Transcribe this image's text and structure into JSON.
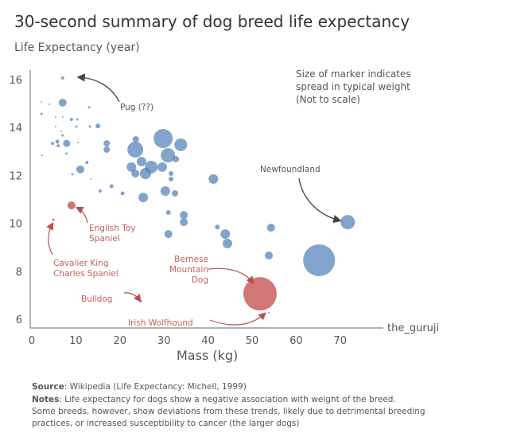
{
  "chart_data": {
    "type": "scatter",
    "title": "30-second summary of dog breed life expectancy",
    "ylabel": "Life Expectancy (year)",
    "xlabel": "Mass (kg)",
    "xlim": [
      0,
      80
    ],
    "ylim": [
      5.6,
      16.3
    ],
    "xticks": [
      "0",
      "10",
      "20",
      "30",
      "40",
      "50",
      "60",
      "70"
    ],
    "xtick_values": [
      0,
      10,
      20,
      30,
      40,
      50,
      60,
      70
    ],
    "yticks": [
      "6",
      "8",
      "10",
      "12",
      "14",
      "16"
    ],
    "ytick_values": [
      6,
      8,
      10,
      12,
      14,
      16
    ],
    "grid": false,
    "size_note": [
      "Size of marker indicates",
      "spread in typical weight",
      "(Not to scale)"
    ],
    "watermark": "the_guruji",
    "colors": {
      "normal": "#4f7db3",
      "highlight": "#c9605f",
      "arrow": "#444444"
    },
    "series": [
      {
        "name": "breeds",
        "color": "#4f7db3",
        "points_xy_size": [
          [
            7.0,
            16.07,
            2
          ],
          [
            7.0,
            15.04,
            5
          ],
          [
            2.2,
            15.07,
            1
          ],
          [
            4.0,
            14.97,
            1
          ],
          [
            2.2,
            14.57,
            1.5
          ],
          [
            5.4,
            14.44,
            1
          ],
          [
            7.0,
            14.44,
            1
          ],
          [
            9.0,
            14.34,
            2
          ],
          [
            10.3,
            14.34,
            1.5
          ],
          [
            10.1,
            14.04,
            1.5
          ],
          [
            13.2,
            14.04,
            1.5
          ],
          [
            13.0,
            14.84,
            1.5
          ],
          [
            15.0,
            14.07,
            3
          ],
          [
            5.4,
            14.04,
            1
          ],
          [
            6.7,
            13.84,
            1
          ],
          [
            7.0,
            13.67,
            1.5
          ],
          [
            4.7,
            13.34,
            2
          ],
          [
            5.8,
            13.41,
            2.5
          ],
          [
            6.0,
            13.24,
            2
          ],
          [
            7.9,
            13.34,
            4.5
          ],
          [
            10.5,
            13.38,
            1
          ],
          [
            7.9,
            12.91,
            1.5
          ],
          [
            17.0,
            13.34,
            4
          ],
          [
            17.0,
            13.08,
            4
          ],
          [
            2.3,
            12.84,
            1
          ],
          [
            12.5,
            12.54,
            2
          ],
          [
            11.0,
            12.25,
            5
          ],
          [
            9.2,
            12.05,
            1.5
          ],
          [
            13.5,
            11.85,
            1
          ],
          [
            29.8,
            13.54,
            12
          ],
          [
            33.8,
            13.28,
            8
          ],
          [
            23.5,
            13.08,
            10
          ],
          [
            23.6,
            13.51,
            4
          ],
          [
            30.9,
            12.84,
            9
          ],
          [
            24.9,
            12.58,
            6
          ],
          [
            22.6,
            12.35,
            6
          ],
          [
            27.1,
            12.35,
            8
          ],
          [
            29.6,
            12.35,
            6
          ],
          [
            25.8,
            12.08,
            7
          ],
          [
            23.5,
            12.08,
            5
          ],
          [
            32.7,
            12.68,
            4
          ],
          [
            31.6,
            12.08,
            3
          ],
          [
            31.6,
            11.85,
            3
          ],
          [
            30.3,
            11.35,
            6
          ],
          [
            32.5,
            11.25,
            4
          ],
          [
            25.3,
            11.08,
            6
          ],
          [
            18.1,
            11.55,
            2.5
          ],
          [
            15.5,
            11.35,
            2
          ],
          [
            20.6,
            11.25,
            2.5
          ],
          [
            41.2,
            11.85,
            6
          ],
          [
            31.0,
            10.45,
            3
          ],
          [
            34.5,
            10.35,
            5
          ],
          [
            34.5,
            10.05,
            5
          ],
          [
            31.0,
            9.55,
            5
          ],
          [
            42.1,
            9.85,
            3
          ],
          [
            43.9,
            9.55,
            6
          ],
          [
            44.4,
            9.16,
            6
          ],
          [
            54.3,
            9.82,
            5
          ],
          [
            53.8,
            8.66,
            5
          ],
          [
            71.7,
            10.05,
            9
          ],
          [
            65.2,
            8.46,
            20
          ]
        ]
      },
      {
        "name": "highlighted",
        "color": "#c9605f",
        "points_xy_size": [
          [
            51.8,
            7.06,
            21
          ],
          [
            24.7,
            6.76,
            1.5
          ],
          [
            53.8,
            6.27,
            1
          ],
          [
            9.0,
            10.75,
            5
          ],
          [
            4.9,
            10.15,
            1.5
          ]
        ]
      }
    ],
    "annotations": {
      "pug": "Pug (??)",
      "newfoundland": "Newfoundland",
      "english_toy": [
        "English Toy",
        "Spaniel"
      ],
      "cavalier": [
        "Cavalier King",
        "Charles Spaniel"
      ],
      "bernese": [
        "Bernese",
        "Mountain",
        "Dog"
      ],
      "bulldog": "Bulldog",
      "irish_wolfhound": "Irish Wolfhound"
    }
  },
  "footer": {
    "source_label": "Source",
    "source_text": ": Wikipedia (Life Expectancy: Michell, 1999)",
    "notes_label": "Notes",
    "notes_lines": [
      ": Life expectancy for dogs show a negative association with weight of the breed.",
      "Some breeds, however, show deviations from these trends, likely due to detrimental breeding",
      "practices, or increased susceptibility to cancer (the larger dogs)"
    ]
  }
}
